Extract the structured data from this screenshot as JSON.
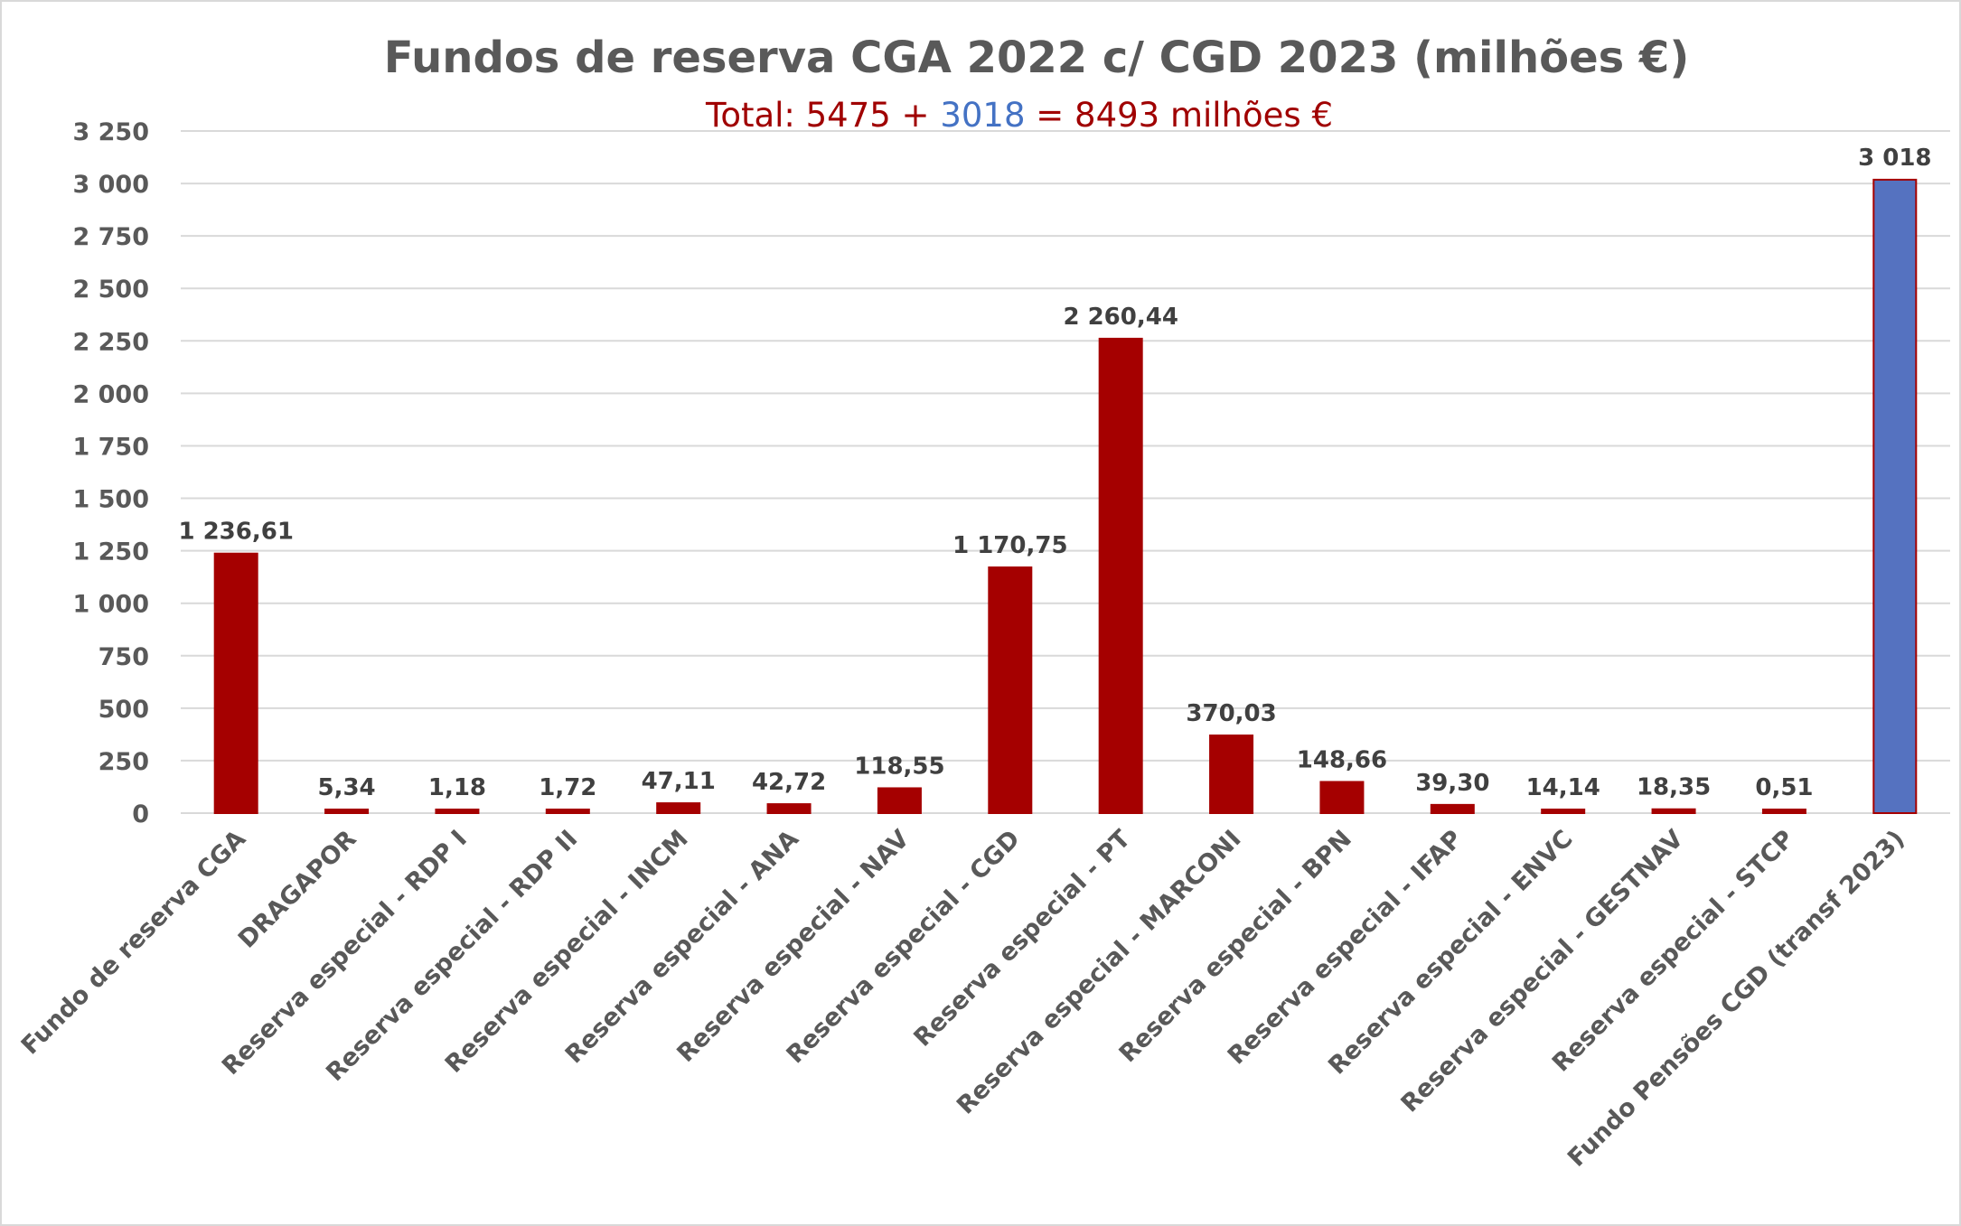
{
  "chart_data": {
    "type": "bar",
    "title": "Fundos de reserva CGA 2022 c/ CGD 2023 (milhões €)",
    "subtitle": {
      "prefix": "Total: 5475 + ",
      "highlight": "3018",
      "suffix": " = 8493 milhões €",
      "prefix_color": "#A00000",
      "highlight_color": "#4472C4"
    },
    "xlabel": "",
    "ylabel": "",
    "ylim": [
      0,
      3250
    ],
    "yticks": [
      0,
      250,
      500,
      750,
      1000,
      1250,
      1500,
      1750,
      2000,
      2250,
      2500,
      2750,
      3000,
      3250
    ],
    "ytick_labels": [
      "0",
      "250",
      "500",
      "750",
      "1 000",
      "1 250",
      "1 500",
      "1 750",
      "2 000",
      "2 250",
      "2 500",
      "2 750",
      "3 000",
      "3 250"
    ],
    "grid": true,
    "legend": "none",
    "categories": [
      "Fundo de reserva CGA",
      "DRAGAPOR",
      "Reserva especial - RDP I",
      "Reserva especial - RDP II",
      "Reserva especial - INCM",
      "Reserva especial - ANA",
      "Reserva especial - NAV",
      "Reserva especial - CGD",
      "Reserva especial - PT",
      "Reserva especial - MARCONI",
      "Reserva especial - BPN",
      "Reserva especial - IFAP",
      "Reserva especial - ENVC",
      "Reserva especial - GESTNAV",
      "Reserva especial - STCP",
      "Fundo Pensões CGD (transf 2023)"
    ],
    "values": [
      1236.61,
      5.34,
      1.18,
      1.72,
      47.11,
      42.72,
      118.55,
      1170.75,
      2260.44,
      370.03,
      148.66,
      39.3,
      14.14,
      18.35,
      0.51,
      3018
    ],
    "data_labels": [
      "1 236,61",
      "5,34",
      "1,18",
      "1,72",
      "47,11",
      "42,72",
      "118,55",
      "1 170,75",
      "2 260,44",
      "370,03",
      "148,66",
      "39,30",
      "14,14",
      "18,35",
      "0,51",
      "3 018"
    ],
    "colors": [
      "#A50000",
      "#A50000",
      "#A50000",
      "#A50000",
      "#A50000",
      "#A50000",
      "#A50000",
      "#A50000",
      "#A50000",
      "#A50000",
      "#A50000",
      "#A50000",
      "#A50000",
      "#A50000",
      "#A50000",
      "#5572C0"
    ],
    "bar_edge_color": "#A50000"
  }
}
